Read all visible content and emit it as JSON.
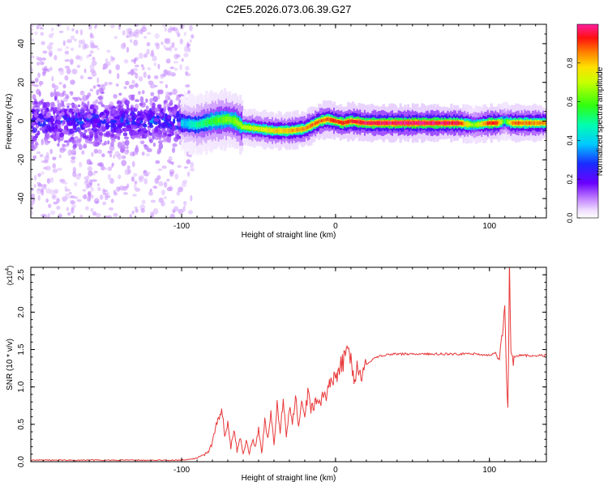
{
  "chart_data": [
    {
      "type": "heatmap",
      "title": "C2E5.2026.073.06.39.G27",
      "xlabel": "Height of straight line (km)",
      "ylabel": "Frequency (Hz)",
      "xlim": [
        -198,
        137
      ],
      "ylim": [
        -50,
        50
      ],
      "xticks": [
        -100,
        0,
        100
      ],
      "xtick_labels": [
        "-100",
        "0",
        "100"
      ],
      "yticks": [
        -40,
        -20,
        0,
        20,
        40
      ],
      "ytick_labels": [
        "-40",
        "-20",
        "0",
        "20",
        "40"
      ],
      "colorbar": {
        "label": "Normalized spectral amplitude",
        "range": [
          0,
          1
        ],
        "ticks": [
          0.0,
          0.2,
          0.4,
          0.6,
          0.8
        ],
        "tick_labels": [
          "0.0",
          "0.2",
          "0.4",
          "0.6",
          "0.8"
        ],
        "colormap": "rainbow (white → purple → blue → cyan → green → yellow → red → magenta)"
      },
      "ridge": {
        "description": "Dominant frequency track (Hz) vs height (km)",
        "x": [
          -198,
          -170,
          -140,
          -120,
          -100,
          -90,
          -80,
          -70,
          -65,
          -60,
          -50,
          -40,
          -30,
          -20,
          -15,
          -10,
          -5,
          0,
          5,
          10,
          20,
          40,
          60,
          80,
          90,
          100,
          105,
          110,
          115,
          137
        ],
        "y": [
          -1,
          0,
          1,
          0,
          -1,
          -2,
          0,
          1,
          0,
          -3,
          -4,
          -5,
          -5,
          -4,
          -2,
          0,
          1,
          0,
          -1,
          0,
          -1,
          -1,
          -1,
          -1,
          -2,
          -1,
          -1,
          0,
          -1,
          -1
        ],
        "amplitude": [
          0.3,
          0.3,
          0.3,
          0.3,
          0.35,
          0.45,
          0.55,
          0.6,
          0.6,
          0.65,
          0.7,
          0.75,
          0.8,
          0.8,
          0.85,
          0.85,
          0.85,
          0.9,
          0.9,
          0.9,
          0.92,
          0.95,
          0.95,
          0.92,
          0.6,
          0.9,
          0.9,
          0.5,
          0.85,
          0.8
        ]
      }
    },
    {
      "type": "line",
      "xlabel": "Height of straight line (km)",
      "ylabel": "SNR (10 * v/v)",
      "y_scale_label": "(x10",
      "y_scale_exponent": "4",
      "y_scale_close": ")",
      "xlim": [
        -198,
        137
      ],
      "ylim": [
        0,
        2.6
      ],
      "xticks": [
        -100,
        0,
        100
      ],
      "xtick_labels": [
        "-100",
        "0",
        "100"
      ],
      "yticks": [
        0.0,
        0.5,
        1.0,
        1.5,
        2.0,
        2.5
      ],
      "ytick_labels": [
        "0.0",
        "0.5",
        "1.0",
        "1.5",
        "2.0",
        "2.5"
      ],
      "color": "#e8393a",
      "series": [
        {
          "name": "SNR",
          "x": [
            -198,
            -190,
            -180,
            -170,
            -160,
            -150,
            -140,
            -130,
            -120,
            -110,
            -100,
            -95,
            -90,
            -85,
            -82,
            -80,
            -78,
            -76,
            -74,
            -72,
            -70,
            -68,
            -66,
            -64,
            -62,
            -60,
            -58,
            -56,
            -54,
            -52,
            -50,
            -48,
            -46,
            -44,
            -42,
            -40,
            -38,
            -36,
            -34,
            -32,
            -30,
            -28,
            -26,
            -24,
            -22,
            -20,
            -18,
            -16,
            -14,
            -12,
            -10,
            -8,
            -6,
            -4,
            -2,
            0,
            2,
            4,
            6,
            8,
            10,
            12,
            14,
            16,
            18,
            20,
            25,
            30,
            35,
            40,
            50,
            60,
            70,
            80,
            90,
            95,
            100,
            104,
            106,
            108,
            110,
            111,
            112,
            113,
            114,
            116,
            120,
            125,
            130,
            137
          ],
          "y": [
            0.02,
            0.02,
            0.02,
            0.02,
            0.02,
            0.02,
            0.02,
            0.02,
            0.02,
            0.02,
            0.02,
            0.03,
            0.05,
            0.1,
            0.15,
            0.25,
            0.45,
            0.55,
            0.72,
            0.35,
            0.5,
            0.2,
            0.42,
            0.15,
            0.32,
            0.12,
            0.28,
            0.1,
            0.3,
            0.2,
            0.45,
            0.1,
            0.55,
            0.3,
            0.7,
            0.2,
            0.75,
            0.4,
            0.85,
            0.3,
            0.7,
            0.55,
            0.85,
            0.5,
            0.8,
            0.6,
            0.9,
            0.7,
            0.75,
            0.85,
            0.8,
            0.9,
            0.85,
            1.0,
            1.05,
            1.15,
            1.2,
            1.3,
            1.35,
            1.45,
            1.35,
            1.1,
            1.3,
            1.15,
            1.25,
            1.3,
            1.38,
            1.42,
            1.44,
            1.44,
            1.44,
            1.44,
            1.44,
            1.44,
            1.44,
            1.43,
            1.43,
            1.45,
            1.35,
            1.62,
            2.15,
            1.1,
            0.6,
            2.6,
            1.4,
            1.4,
            1.42,
            1.42,
            1.42,
            1.42
          ]
        }
      ]
    }
  ]
}
